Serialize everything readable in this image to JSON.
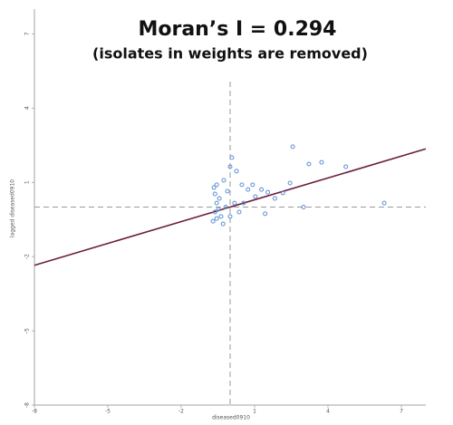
{
  "chart_data": {
    "type": "scatter",
    "title": "Moran’s I = 0.294",
    "subtitle": "(isolates in weights are removed)",
    "x_label": "diseased0910",
    "y_label": "lagged diseased0910",
    "xlim": [
      -8,
      8
    ],
    "ylim": [
      -8,
      8
    ],
    "xticks": [
      -8,
      -5,
      -2,
      1,
      4,
      7
    ],
    "yticks": [
      -8,
      -5,
      -2,
      1,
      4,
      7
    ],
    "mean_x": 0,
    "mean_y": 0,
    "fit_line": {
      "slope": 0.294,
      "intercept": 0,
      "color": "#6b1f3d"
    },
    "point_color": "#5b8fd6",
    "x": [
      2.56,
      3.22,
      3.74,
      4.73,
      6.3,
      2.45,
      2.16,
      1.43,
      3.0,
      1.54,
      1.28,
      1.03,
      0.73,
      0.48,
      0.26,
      0,
      0.07,
      -0.26,
      -0.55,
      -0.62,
      -0.55,
      -0.62,
      -0.55,
      -0.37,
      -0.18,
      -0.44,
      -0.11,
      0.18,
      0.37,
      -0.7,
      -0.48,
      -0.29,
      -0.66,
      0,
      0.55,
      0.92,
      1.83
    ],
    "y": [
      2.44,
      1.74,
      1.81,
      1.63,
      0.16,
      0.97,
      0.57,
      -0.27,
      0,
      0.6,
      0.71,
      0.42,
      0.71,
      0.9,
      1.45,
      1.63,
      2.0,
      1.08,
      0.9,
      0.53,
      0.16,
      -0.2,
      -0.46,
      -0.38,
      0,
      0.35,
      0.64,
      0.16,
      -0.2,
      -0.57,
      -0.09,
      -0.68,
      0.79,
      -0.38,
      0.16,
      0.9,
      0.35
    ]
  }
}
